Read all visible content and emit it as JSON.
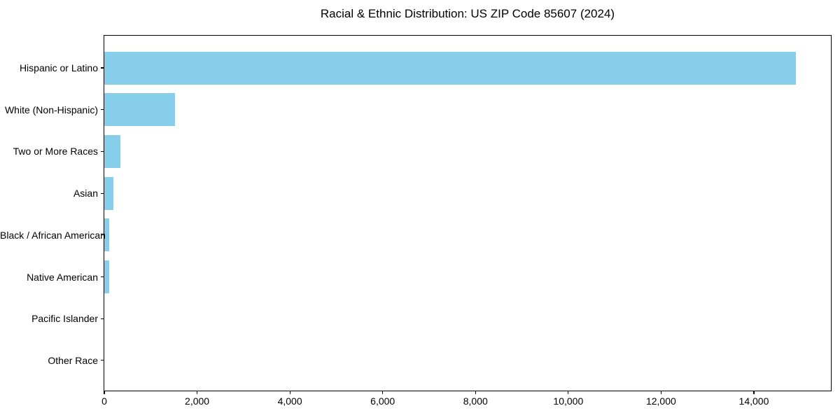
{
  "chart_data": {
    "type": "bar",
    "orientation": "horizontal",
    "title": "Racial & Ethnic Distribution: US ZIP Code 85607 (2024)",
    "categories": [
      "Hispanic or Latino",
      "White (Non-Hispanic)",
      "Two or More Races",
      "Asian",
      "Black / African American",
      "Native American",
      "Pacific Islander",
      "Other Race"
    ],
    "values": [
      14900,
      1520,
      345,
      195,
      110,
      105,
      0,
      0
    ],
    "xlabel": "",
    "ylabel": "",
    "xlim": [
      0,
      15660
    ],
    "xticks": [
      0,
      2000,
      4000,
      6000,
      8000,
      10000,
      12000,
      14000
    ],
    "xtick_labels": [
      "0",
      "2,000",
      "4,000",
      "6,000",
      "8,000",
      "10,000",
      "12,000",
      "14,000"
    ],
    "grid": false,
    "legend": null,
    "bar_color": "#87CEEB",
    "background_color": "#FFFFFF",
    "spine_color": "#000000",
    "text_color": "#000000"
  }
}
